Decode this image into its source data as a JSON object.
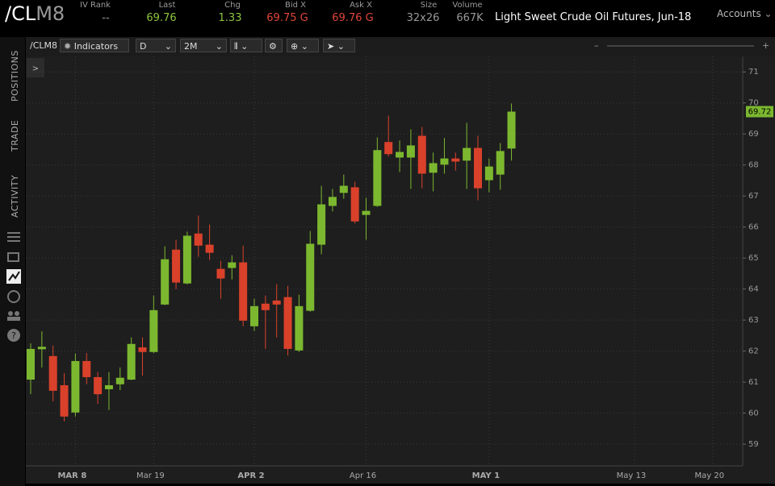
{
  "header": {
    "symbol_root": "/CL",
    "symbol_month": "M8",
    "fields": [
      {
        "label": "IV Rank",
        "value": "--"
      },
      {
        "label": "Last",
        "value": "69.76"
      },
      {
        "label": "Chg",
        "value": "1.33"
      },
      {
        "label": "Bid X",
        "value": "69.75 G"
      },
      {
        "label": "Ask X",
        "value": "69.76 G"
      },
      {
        "label": "Size",
        "value": "32x26"
      },
      {
        "label": "Volume",
        "value": "667K"
      }
    ],
    "description": "Light Sweet Crude Oil Futures, Jun-18",
    "accounts": "Accounts"
  },
  "toolbar": {
    "symbol": "/CLM8",
    "indicators": "Indicators",
    "aggregation": "D",
    "period": "2M",
    "zoom_out": "–",
    "zoom_in": "+",
    "expand": ">"
  },
  "sidebar": {
    "tabs": [
      "POSITIONS",
      "TRADE",
      "ACTIVITY"
    ]
  },
  "chart_data": {
    "type": "candlestick",
    "up_color": "#7cb82f",
    "down_color": "#d9412b",
    "grid": true,
    "categories": [
      null,
      null,
      null,
      null,
      "MAR 8",
      null,
      null,
      null,
      null,
      null,
      null,
      "Mar 19",
      null,
      null,
      null,
      null,
      null,
      null,
      null,
      null,
      "APR 2",
      null,
      null,
      null,
      null,
      null,
      null,
      null,
      null,
      null,
      "Apr 16",
      null,
      null,
      null,
      null,
      null,
      null,
      null,
      null,
      null,
      null,
      "MAY 1",
      null,
      null,
      null,
      null,
      null,
      null,
      null,
      null,
      null,
      null,
      null,
      null,
      "May 13",
      null,
      null,
      null,
      null,
      null,
      null,
      "May 20"
    ],
    "open": [
      61.08,
      62.06,
      61.84,
      60.9,
      60.02,
      61.68,
      61.16,
      60.77,
      60.93,
      61.08,
      62.12,
      61.97,
      63.5,
      65.27,
      64.18,
      65.79,
      65.43,
      64.65,
      64.68,
      64.86,
      62.8,
      63.53,
      63.63,
      63.74,
      62.02,
      63.3,
      65.43,
      66.68,
      67.1,
      67.28,
      66.39,
      66.68,
      68.74,
      68.24,
      68.24,
      68.94,
      67.75,
      68.01,
      68.21,
      68.14,
      68.55,
      67.51,
      67.69,
      68.53,
      null,
      null,
      null,
      null,
      null,
      null,
      null,
      null,
      null,
      null,
      null,
      null,
      null,
      null,
      null,
      null,
      null,
      null
    ],
    "high": [
      62.25,
      62.64,
      62.18,
      61.29,
      61.92,
      61.94,
      61.32,
      61.32,
      61.47,
      62.44,
      62.44,
      63.79,
      65.38,
      65.59,
      65.85,
      66.37,
      66.08,
      64.91,
      65.09,
      65.4,
      63.69,
      63.79,
      64.16,
      64.1,
      63.82,
      65.87,
      67.33,
      67.23,
      67.69,
      67.46,
      66.94,
      68.89,
      69.59,
      68.79,
      69.15,
      69.23,
      68.4,
      68.87,
      68.4,
      69.36,
      68.94,
      68.21,
      68.71,
      69.98,
      null,
      null,
      null,
      null,
      null,
      null,
      null,
      null,
      null,
      null,
      null,
      null,
      null,
      null,
      null,
      null,
      null,
      null
    ],
    "low": [
      60.61,
      61.47,
      60.38,
      59.73,
      59.89,
      60.93,
      60.3,
      60.1,
      60.74,
      61.06,
      61.21,
      61.94,
      63.48,
      64.0,
      64.15,
      65.04,
      64.94,
      63.69,
      64.31,
      62.8,
      62.65,
      62.07,
      62.44,
      61.86,
      61.97,
      63.27,
      65.12,
      66.5,
      66.91,
      66.11,
      65.59,
      66.65,
      68.27,
      67.77,
      67.23,
      67.25,
      67.15,
      67.72,
      67.82,
      67.23,
      66.86,
      67.12,
      67.2,
      68.14,
      null,
      null,
      null,
      null,
      null,
      null,
      null,
      null,
      null,
      null,
      null,
      null,
      null,
      null,
      null,
      null,
      null,
      null
    ],
    "close": [
      62.07,
      62.14,
      60.72,
      59.89,
      61.68,
      61.16,
      60.61,
      60.9,
      61.14,
      62.23,
      61.97,
      63.32,
      64.96,
      64.21,
      65.72,
      65.4,
      65.17,
      64.34,
      64.86,
      62.98,
      63.45,
      63.32,
      63.5,
      62.07,
      63.45,
      65.46,
      66.73,
      66.97,
      67.33,
      66.18,
      66.52,
      68.48,
      68.35,
      68.42,
      68.63,
      67.72,
      68.06,
      68.21,
      68.11,
      68.55,
      67.25,
      67.95,
      68.45,
      69.72,
      null,
      null,
      null,
      null,
      null,
      null,
      null,
      null,
      null,
      null,
      null,
      null,
      null,
      null,
      null,
      null,
      null,
      null
    ],
    "ylim": [
      58.3,
      71.5
    ],
    "yticks": [
      59,
      60,
      61,
      62,
      63,
      64,
      65,
      66,
      67,
      68,
      69,
      70,
      71
    ]
  }
}
